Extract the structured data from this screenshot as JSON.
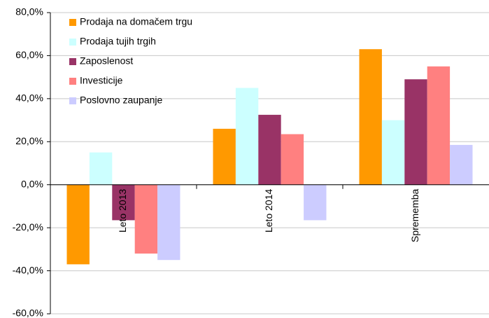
{
  "chart_data": {
    "type": "bar",
    "categories": [
      "Leto 2013",
      "Leto 2014",
      "Sprememba"
    ],
    "series": [
      {
        "name": "Prodaja na domačem trgu",
        "color": "#ff9900",
        "values": [
          -37,
          26,
          63
        ]
      },
      {
        "name": "Prodaja tujih trgih",
        "color": "#ccffff",
        "values": [
          15,
          45,
          30
        ]
      },
      {
        "name": "Zaposlenost",
        "color": "#993366",
        "values": [
          -16.5,
          32.5,
          49
        ]
      },
      {
        "name": "Investicije",
        "color": "#ff8080",
        "values": [
          -32,
          23.5,
          55
        ]
      },
      {
        "name": "Poslovno zaupanje",
        "color": "#ccccff",
        "values": [
          -35,
          -16.5,
          18.5
        ]
      }
    ],
    "ylim": [
      -60,
      80
    ],
    "yticks": [
      {
        "value": -60,
        "label": "-60,0%"
      },
      {
        "value": -40,
        "label": "-40,0%"
      },
      {
        "value": -20,
        "label": "-20,0%"
      },
      {
        "value": 0,
        "label": "0,0%"
      },
      {
        "value": 20,
        "label": "20,0%"
      },
      {
        "value": 40,
        "label": "40,0%"
      },
      {
        "value": 60,
        "label": "60,0%"
      },
      {
        "value": 80,
        "label": "80,0%"
      }
    ],
    "grid": true,
    "legend": "top-left"
  }
}
